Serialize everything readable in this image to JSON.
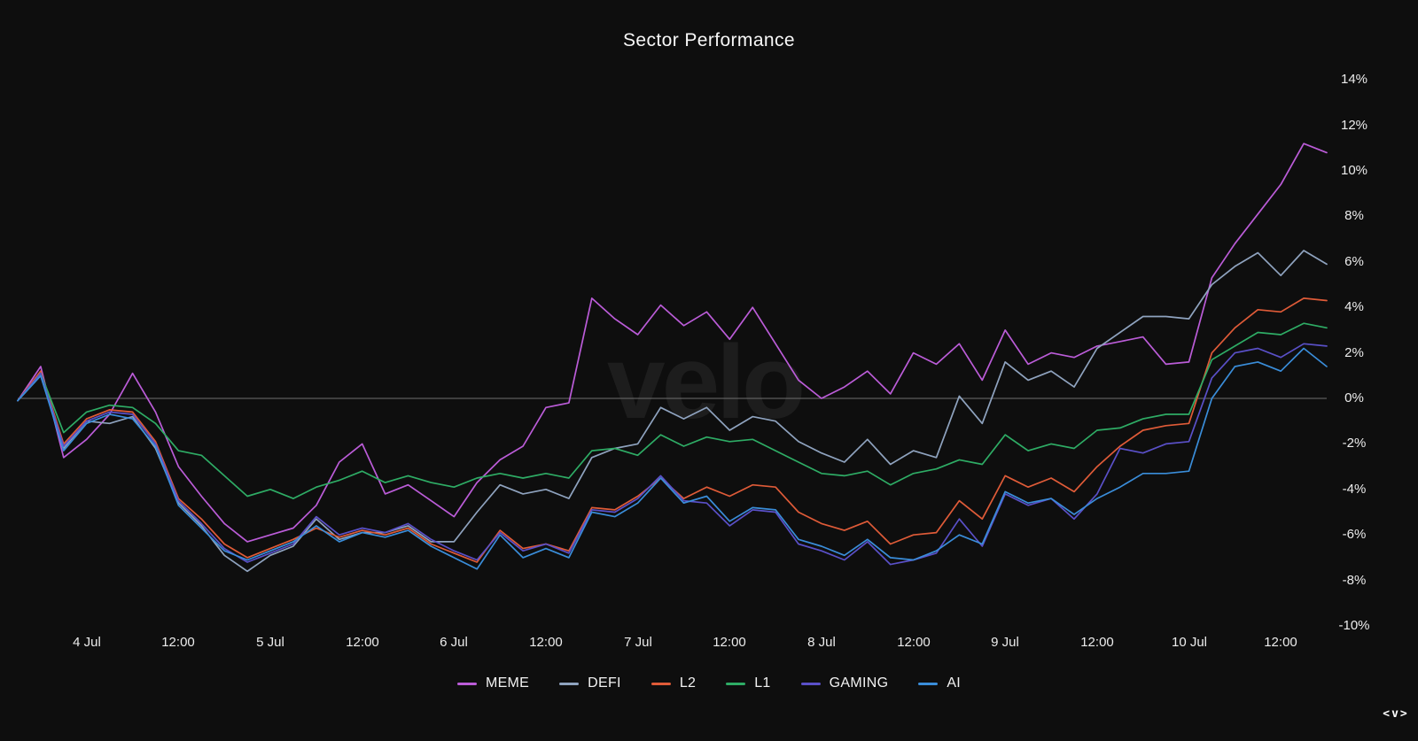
{
  "header": {
    "title": "Sector Performance"
  },
  "watermark": {
    "text": "velo"
  },
  "footer": {
    "logo_mark": "<v>"
  },
  "colors": {
    "background": "#0e0e0e",
    "zero_line": "#6f6f6f",
    "tick_text": "#ececec",
    "title_text": "#f7f7f7",
    "watermark_text": "#1d1d1d"
  },
  "chart_data": {
    "type": "line",
    "title": "Sector Performance",
    "xlabel": "",
    "ylabel": "%",
    "ylim": [
      -10,
      14
    ],
    "grid": false,
    "zero_line": true,
    "legend_position": "bottom",
    "y_axis": {
      "tick_values": [
        14,
        12,
        10,
        8,
        6,
        4,
        2,
        0,
        -2,
        -4,
        -6,
        -8,
        -10
      ],
      "tick_labels": [
        "14%",
        "12%",
        "10%",
        "8%",
        "6%",
        "4%",
        "2%",
        "0%",
        "-2%",
        "-4%",
        "-6%",
        "-8%",
        "-10%"
      ]
    },
    "x_axis": {
      "tick_labels": [
        "4 Jul",
        "12:00",
        "5 Jul",
        "12:00",
        "6 Jul",
        "12:00",
        "7 Jul",
        "12:00",
        "8 Jul",
        "12:00",
        "9 Jul",
        "12:00",
        "10 Jul",
        "12:00"
      ],
      "tick_indices": [
        3,
        7,
        11,
        15,
        19,
        23,
        27,
        31,
        35,
        39,
        43,
        47,
        51,
        55
      ]
    },
    "series": [
      {
        "name": "MEME",
        "color": "#bb5cd8",
        "values": [
          -0.1,
          1.4,
          -2.6,
          -1.8,
          -0.7,
          1.1,
          -0.6,
          -3.0,
          -4.3,
          -5.5,
          -6.3,
          -6.0,
          -5.7,
          -4.7,
          -2.8,
          -2.0,
          -4.2,
          -3.8,
          -4.5,
          -5.2,
          -3.7,
          -2.7,
          -2.1,
          -0.4,
          -0.2,
          4.4,
          3.5,
          2.8,
          4.1,
          3.2,
          3.8,
          2.6,
          4.0,
          2.4,
          0.8,
          0.0,
          0.5,
          1.2,
          0.2,
          2.0,
          1.5,
          2.4,
          0.8,
          3.0,
          1.5,
          2.0,
          1.8,
          2.3,
          2.5,
          2.7,
          1.5,
          1.6,
          5.3,
          6.8,
          8.1,
          9.4,
          11.2,
          10.8
        ]
      },
      {
        "name": "DEFI",
        "color": "#8fa3bf",
        "values": [
          -0.1,
          1.0,
          -2.2,
          -1.0,
          -1.1,
          -0.8,
          -2.2,
          -4.6,
          -5.6,
          -6.9,
          -7.6,
          -6.9,
          -6.5,
          -5.3,
          -6.2,
          -5.9,
          -5.9,
          -5.6,
          -6.3,
          -6.3,
          -5.0,
          -3.8,
          -4.2,
          -4.0,
          -4.4,
          -2.6,
          -2.2,
          -2.0,
          -0.4,
          -0.9,
          -0.4,
          -1.4,
          -0.8,
          -1.0,
          -1.9,
          -2.4,
          -2.8,
          -1.8,
          -2.9,
          -2.3,
          -2.6,
          0.1,
          -1.1,
          1.6,
          0.8,
          1.2,
          0.5,
          2.2,
          2.9,
          3.6,
          3.6,
          3.5,
          5.0,
          5.8,
          6.4,
          5.4,
          6.5,
          5.9
        ]
      },
      {
        "name": "L2",
        "color": "#df5b38",
        "values": [
          -0.1,
          1.2,
          -2.0,
          -0.9,
          -0.5,
          -0.6,
          -1.9,
          -4.4,
          -5.3,
          -6.4,
          -7.0,
          -6.6,
          -6.2,
          -5.7,
          -6.1,
          -5.8,
          -6.0,
          -5.7,
          -6.4,
          -6.8,
          -7.2,
          -5.8,
          -6.6,
          -6.4,
          -6.7,
          -4.8,
          -4.9,
          -4.3,
          -3.5,
          -4.4,
          -3.9,
          -4.3,
          -3.8,
          -3.9,
          -5.0,
          -5.5,
          -5.8,
          -5.4,
          -6.4,
          -6.0,
          -5.9,
          -4.5,
          -5.3,
          -3.4,
          -3.9,
          -3.5,
          -4.1,
          -3.0,
          -2.1,
          -1.4,
          -1.2,
          -1.1,
          2.0,
          3.1,
          3.9,
          3.8,
          4.4,
          4.3
        ]
      },
      {
        "name": "L1",
        "color": "#2eac65",
        "values": [
          -0.1,
          1.1,
          -1.5,
          -0.6,
          -0.3,
          -0.4,
          -1.1,
          -2.3,
          -2.5,
          -3.4,
          -4.3,
          -4.0,
          -4.4,
          -3.9,
          -3.6,
          -3.2,
          -3.7,
          -3.4,
          -3.7,
          -3.9,
          -3.5,
          -3.3,
          -3.5,
          -3.3,
          -3.5,
          -2.3,
          -2.2,
          -2.5,
          -1.6,
          -2.1,
          -1.7,
          -1.9,
          -1.8,
          -2.3,
          -2.8,
          -3.3,
          -3.4,
          -3.2,
          -3.8,
          -3.3,
          -3.1,
          -2.7,
          -2.9,
          -1.6,
          -2.3,
          -2.0,
          -2.2,
          -1.4,
          -1.3,
          -0.9,
          -0.7,
          -0.7,
          1.7,
          2.3,
          2.9,
          2.8,
          3.3,
          3.1
        ]
      },
      {
        "name": "GAMING",
        "color": "#5a50c8",
        "values": [
          -0.1,
          1.1,
          -2.1,
          -1.0,
          -0.6,
          -0.7,
          -2.0,
          -4.5,
          -5.5,
          -6.6,
          -7.2,
          -6.8,
          -6.4,
          -5.2,
          -6.0,
          -5.7,
          -5.9,
          -5.5,
          -6.2,
          -6.7,
          -7.1,
          -5.9,
          -6.7,
          -6.4,
          -6.8,
          -4.9,
          -5.0,
          -4.4,
          -3.4,
          -4.5,
          -4.6,
          -5.6,
          -4.9,
          -5.0,
          -6.4,
          -6.7,
          -7.1,
          -6.3,
          -7.3,
          -7.1,
          -6.8,
          -5.3,
          -6.5,
          -4.2,
          -4.7,
          -4.4,
          -5.3,
          -4.2,
          -2.2,
          -2.4,
          -2.0,
          -1.9,
          0.9,
          2.0,
          2.2,
          1.8,
          2.4,
          2.3
        ]
      },
      {
        "name": "AI",
        "color": "#3a8dd9",
        "values": [
          -0.1,
          1.0,
          -2.3,
          -1.1,
          -0.7,
          -0.9,
          -2.1,
          -4.7,
          -5.7,
          -6.7,
          -7.1,
          -6.7,
          -6.3,
          -5.6,
          -6.3,
          -5.9,
          -6.1,
          -5.8,
          -6.5,
          -7.0,
          -7.5,
          -6.0,
          -7.0,
          -6.6,
          -7.0,
          -5.0,
          -5.2,
          -4.6,
          -3.5,
          -4.6,
          -4.3,
          -5.4,
          -4.8,
          -4.9,
          -6.2,
          -6.5,
          -6.9,
          -6.2,
          -7.0,
          -7.1,
          -6.7,
          -6.0,
          -6.4,
          -4.1,
          -4.6,
          -4.4,
          -5.1,
          -4.4,
          -3.9,
          -3.3,
          -3.3,
          -3.2,
          0.0,
          1.4,
          1.6,
          1.2,
          2.2,
          1.4
        ]
      }
    ]
  }
}
